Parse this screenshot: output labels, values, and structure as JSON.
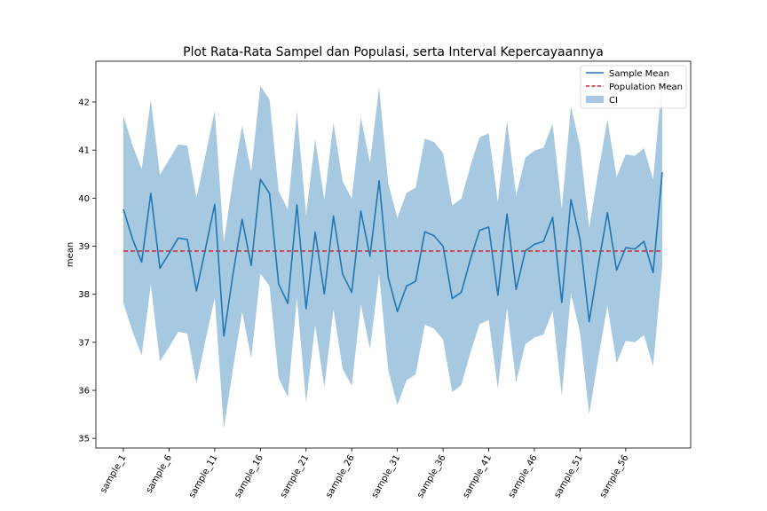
{
  "chart_data": {
    "type": "line",
    "title": "Plot Rata-Rata Sampel dan Populasi, serta Interval Kepercayaannya",
    "xlabel": "",
    "ylabel": "mean",
    "ylim": [
      34.8,
      42.85
    ],
    "yticks": [
      35,
      36,
      37,
      38,
      39,
      40,
      41,
      42
    ],
    "x": [
      "sample_1",
      "sample_2",
      "sample_3",
      "sample_4",
      "sample_5",
      "sample_6",
      "sample_7",
      "sample_8",
      "sample_9",
      "sample_10",
      "sample_11",
      "sample_12",
      "sample_13",
      "sample_14",
      "sample_15",
      "sample_16",
      "sample_17",
      "sample_18",
      "sample_19",
      "sample_20",
      "sample_21",
      "sample_22",
      "sample_23",
      "sample_24",
      "sample_25",
      "sample_26",
      "sample_27",
      "sample_28",
      "sample_29",
      "sample_30",
      "sample_31",
      "sample_32",
      "sample_33",
      "sample_34",
      "sample_35",
      "sample_36",
      "sample_37",
      "sample_38",
      "sample_39",
      "sample_40",
      "sample_41",
      "sample_42",
      "sample_43",
      "sample_44",
      "sample_45",
      "sample_46",
      "sample_47",
      "sample_48",
      "sample_49",
      "sample_50",
      "sample_51",
      "sample_52",
      "sample_53",
      "sample_54",
      "sample_55",
      "sample_56",
      "sample_57",
      "sample_58",
      "sample_59",
      "sample_60"
    ],
    "xticks_shown": [
      "sample_1",
      "sample_6",
      "sample_11",
      "sample_16",
      "sample_21",
      "sample_26",
      "sample_31",
      "sample_36",
      "sample_41",
      "sample_46",
      "sample_51",
      "sample_56"
    ],
    "series": [
      {
        "name": "Sample Mean",
        "color": "#1f77b4",
        "values": [
          39.77,
          39.15,
          38.67,
          40.1,
          38.54,
          38.85,
          39.17,
          39.14,
          38.07,
          38.96,
          39.87,
          37.13,
          38.42,
          39.56,
          38.6,
          40.39,
          40.1,
          38.21,
          37.81,
          39.86,
          37.7,
          39.29,
          38.01,
          39.63,
          38.42,
          38.04,
          39.73,
          38.79,
          40.36,
          38.35,
          37.64,
          38.17,
          38.27,
          39.3,
          39.22,
          39.0,
          37.91,
          38.04,
          38.73,
          39.33,
          39.4,
          37.98,
          39.67,
          38.1,
          38.9,
          39.04,
          39.1,
          39.6,
          37.83,
          39.97,
          39.14,
          37.43,
          38.61,
          39.7,
          38.5,
          38.97,
          38.94,
          39.1,
          38.45,
          40.54
        ]
      },
      {
        "name": "Population Mean",
        "color": "#d62728",
        "style": "dashed",
        "value": 38.9
      }
    ],
    "ci": {
      "name": "CI",
      "color": "#a6c8e0",
      "lower": [
        37.82,
        37.22,
        36.73,
        38.2,
        36.6,
        36.9,
        37.22,
        37.18,
        36.14,
        37.05,
        37.93,
        35.2,
        36.45,
        37.64,
        36.67,
        38.43,
        38.17,
        36.25,
        35.86,
        37.93,
        35.74,
        37.36,
        36.06,
        37.69,
        36.45,
        36.1,
        37.79,
        36.86,
        38.42,
        36.42,
        35.69,
        36.21,
        36.33,
        37.37,
        37.28,
        37.06,
        35.96,
        36.11,
        36.79,
        37.38,
        37.46,
        36.04,
        37.72,
        36.17,
        36.96,
        37.1,
        37.16,
        37.65,
        35.89,
        38.02,
        37.2,
        35.5,
        36.68,
        37.76,
        36.57,
        37.03,
        37.0,
        37.15,
        36.5,
        38.58
      ],
      "upper": [
        41.72,
        41.1,
        40.6,
        42.05,
        40.49,
        40.8,
        41.12,
        41.09,
        40.01,
        40.9,
        41.82,
        39.08,
        40.39,
        41.51,
        40.55,
        42.34,
        42.05,
        40.15,
        39.76,
        41.8,
        39.65,
        41.23,
        39.97,
        41.57,
        40.35,
        39.99,
        41.68,
        40.74,
        42.31,
        40.3,
        39.59,
        40.11,
        40.22,
        41.24,
        41.17,
        40.94,
        39.85,
        39.99,
        40.67,
        41.27,
        41.35,
        39.92,
        41.61,
        40.05,
        40.84,
        40.99,
        41.05,
        41.55,
        39.78,
        41.91,
        41.09,
        39.38,
        40.55,
        41.64,
        40.44,
        40.91,
        40.88,
        41.04,
        40.39,
        42.48
      ]
    },
    "legend": {
      "position": "top-right",
      "entries": [
        "Sample Mean",
        "Population Mean",
        "CI"
      ]
    },
    "grid": false
  }
}
